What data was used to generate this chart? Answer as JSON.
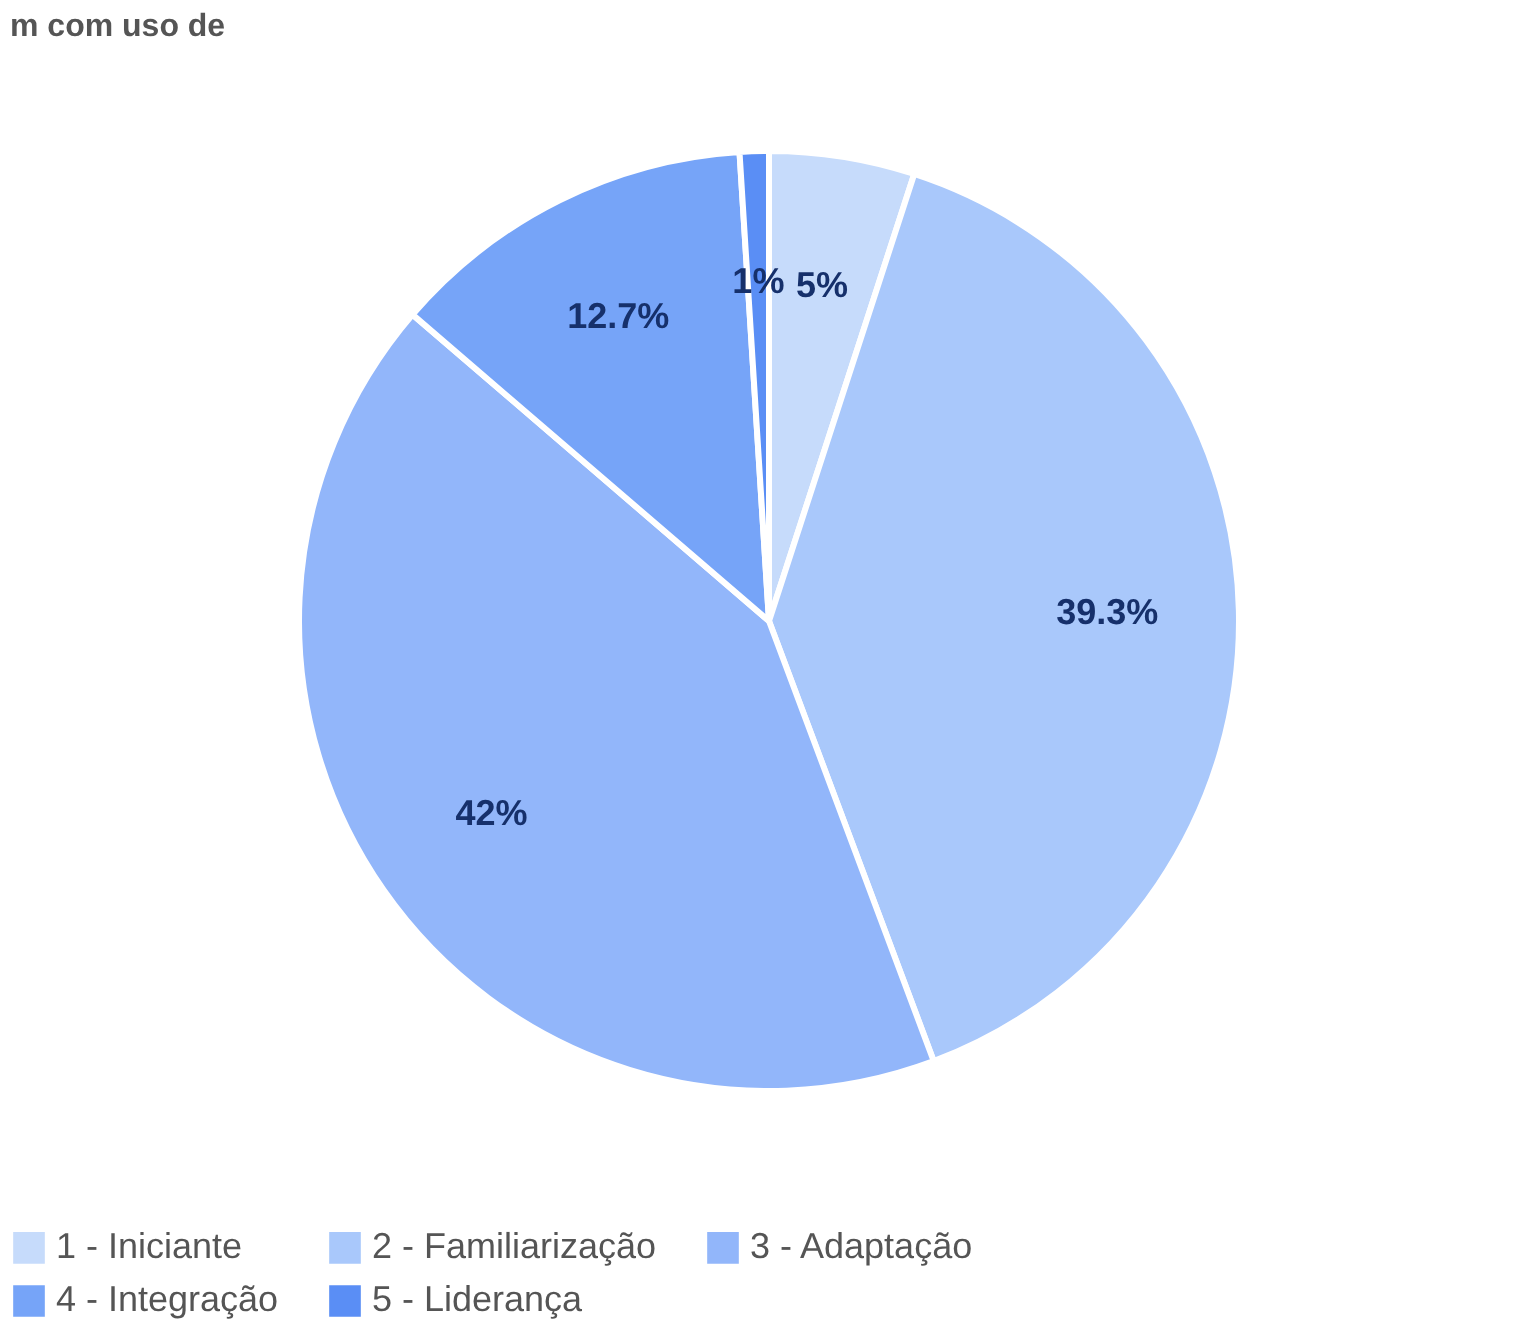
{
  "chart_data": {
    "type": "pie",
    "title": "m com uso de",
    "categories": [
      "1 - Iniciante",
      "2 - Familiarização",
      "3 - Adaptação",
      "4 - Integração",
      "5 - Liderança"
    ],
    "values": [
      5,
      39.3,
      42,
      12.7,
      1
    ],
    "value_labels": [
      "5%",
      "39.3%",
      "42%",
      "12.7%",
      "1%"
    ],
    "colors": [
      "#c6dbfb",
      "#a9c8fb",
      "#92b6fa",
      "#76a4f8",
      "#5a8ef5"
    ],
    "legend": "bottom"
  }
}
